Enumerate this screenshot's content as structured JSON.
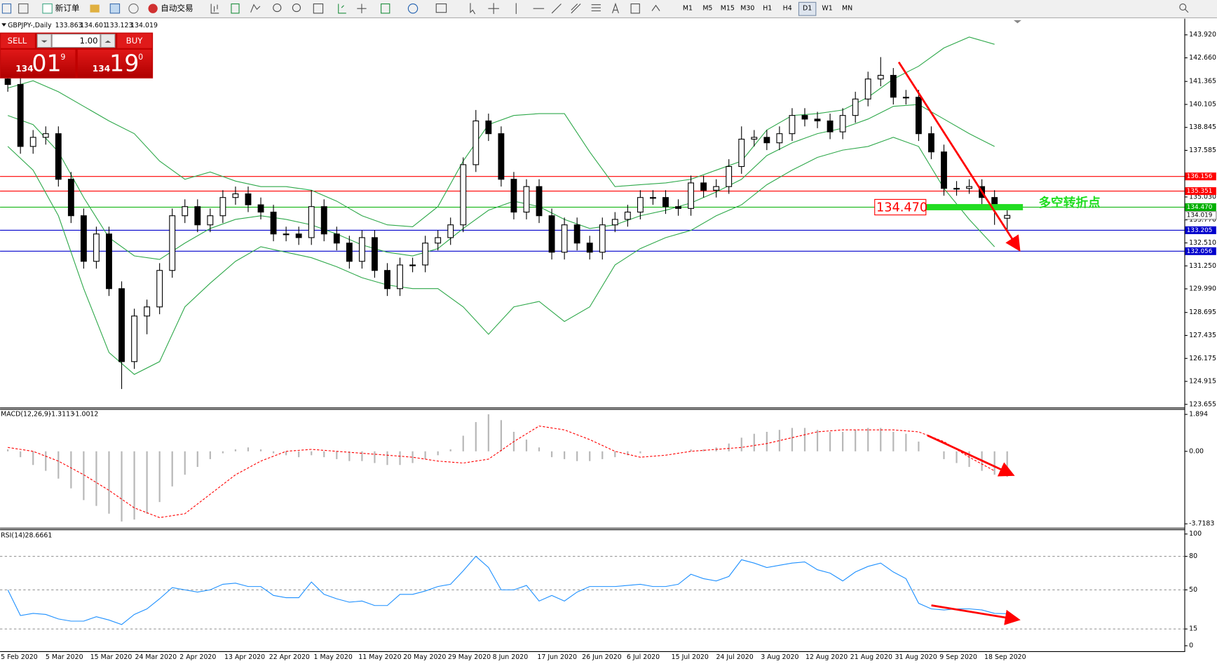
{
  "toolbar": {
    "buttons": [
      "新订单",
      "自动交易"
    ],
    "timeframes": [
      "M1",
      "M5",
      "M15",
      "M30",
      "H1",
      "H4",
      "D1",
      "W1",
      "MN"
    ],
    "active_timeframe": 6
  },
  "trade_panel": {
    "sell": "SELL",
    "buy": "BUY",
    "lots": "1.00",
    "bid": {
      "big": "134",
      "main": "01",
      "pip": "9"
    },
    "ask": {
      "big": "134",
      "main": "19",
      "pip": "0"
    }
  },
  "chart_data": [
    {
      "type": "candlestick",
      "symbol": "GBPJPY-,Daily",
      "ylim": [
        123.485,
        144.81
      ],
      "yticks": [
        {
          "value": 143.92,
          "label": "143.920"
        },
        {
          "value": 142.66,
          "label": "142.660"
        },
        141.365,
        {
          "value": 140.105,
          "label": "140.105"
        },
        138.845,
        137.585,
        {
          "value": 135.03,
          "label": "135.030"
        },
        {
          "value": 133.77,
          "label": "133.770"
        },
        {
          "value": 132.51,
          "label": "132.510"
        },
        {
          "value": 131.25,
          "label": "131.250"
        },
        {
          "value": 129.99,
          "label": "129.990"
        },
        128.695,
        127.435,
        126.175,
        124.915,
        123.655
      ],
      "xticklabels": [
        "5 Feb 2020",
        "5 Mar 2020",
        "15 Mar 2020",
        "24 Mar 2020",
        "2 Apr 2020",
        "13 Apr 2020",
        "22 Apr 2020",
        "1 May 2020",
        "11 May 2020",
        "20 May 2020",
        "29 May 2020",
        "8 Jun 2020",
        "17 Jun 2020",
        "26 Jun 2020",
        "6 Jul 2020",
        "15 Jul 2020",
        "24 Jul 2020",
        "3 Aug 2020",
        "12 Aug 2020",
        "21 Aug 2020",
        "31 Aug 2020",
        "9 Sep 2020",
        "18 Sep 2020"
      ],
      "candles": [
        [
          141.5,
          141.9,
          140.8,
          141.2
        ],
        [
          141.2,
          141.6,
          137.4,
          137.8
        ],
        [
          137.8,
          138.7,
          137.4,
          138.3
        ],
        [
          138.3,
          138.9,
          137.9,
          138.5
        ],
        [
          138.5,
          138.9,
          135.6,
          136.0
        ],
        [
          136.0,
          136.4,
          133.6,
          134.0
        ],
        [
          134.0,
          134.4,
          131.1,
          131.5
        ],
        [
          131.5,
          133.4,
          131.1,
          133.0
        ],
        [
          133.0,
          133.4,
          129.6,
          130.0
        ],
        [
          130.0,
          130.4,
          124.5,
          126.0
        ],
        [
          126.0,
          128.9,
          125.6,
          128.5
        ],
        [
          128.5,
          129.4,
          127.5,
          129.0
        ],
        [
          129.0,
          131.4,
          128.6,
          131.0
        ],
        [
          131.0,
          134.4,
          130.6,
          134.0
        ],
        [
          134.0,
          134.9,
          133.6,
          134.5
        ],
        [
          134.5,
          134.9,
          133.1,
          133.5
        ],
        [
          133.5,
          134.4,
          133.1,
          134.0
        ],
        [
          134.0,
          135.4,
          133.6,
          135.0
        ],
        [
          135.0,
          135.6,
          134.6,
          135.2
        ],
        [
          135.2,
          135.6,
          134.2,
          134.6
        ],
        [
          134.6,
          135.0,
          133.8,
          134.2
        ],
        [
          134.2,
          134.6,
          132.6,
          133.0
        ],
        [
          133.0,
          133.4,
          132.6,
          133.0
        ],
        [
          133.0,
          133.4,
          132.4,
          132.8
        ],
        [
          132.8,
          135.4,
          132.4,
          134.5
        ],
        [
          134.5,
          134.9,
          132.6,
          133.0
        ],
        [
          133.0,
          133.4,
          132.1,
          132.5
        ],
        [
          132.5,
          132.9,
          131.1,
          131.5
        ],
        [
          131.5,
          133.2,
          131.1,
          132.8
        ],
        [
          132.8,
          133.2,
          130.6,
          131.0
        ],
        [
          131.0,
          131.4,
          129.6,
          130.0
        ],
        [
          130.0,
          131.7,
          129.6,
          131.3
        ],
        [
          131.3,
          131.7,
          130.9,
          131.3
        ],
        [
          131.3,
          132.9,
          130.9,
          132.5
        ],
        [
          132.5,
          133.2,
          132.1,
          132.8
        ],
        [
          132.8,
          133.9,
          132.4,
          133.5
        ],
        [
          133.5,
          137.2,
          133.1,
          136.8
        ],
        [
          136.8,
          139.8,
          136.4,
          139.2
        ],
        [
          139.2,
          139.6,
          138.1,
          138.5
        ],
        [
          138.5,
          138.9,
          135.6,
          136.0
        ],
        [
          136.0,
          136.4,
          133.8,
          134.2
        ],
        [
          134.2,
          136.0,
          133.8,
          135.6
        ],
        [
          135.6,
          136.0,
          133.6,
          134.0
        ],
        [
          134.0,
          134.4,
          131.6,
          132.0
        ],
        [
          132.0,
          133.9,
          131.6,
          133.5
        ],
        [
          133.5,
          133.9,
          132.1,
          132.5
        ],
        [
          132.5,
          132.9,
          131.6,
          132.0
        ],
        [
          132.0,
          133.9,
          131.6,
          133.5
        ],
        [
          133.5,
          134.2,
          133.1,
          133.8
        ],
        [
          133.8,
          134.6,
          133.4,
          134.2
        ],
        [
          134.2,
          135.4,
          133.8,
          135.0
        ],
        [
          135.0,
          135.4,
          134.6,
          135.0
        ],
        [
          135.0,
          135.4,
          134.1,
          134.5
        ],
        [
          134.5,
          134.9,
          134.0,
          134.4
        ],
        [
          134.4,
          136.2,
          134.0,
          135.8
        ],
        [
          135.8,
          136.2,
          135.0,
          135.4
        ],
        [
          135.4,
          136.0,
          135.0,
          135.6
        ],
        [
          135.6,
          137.1,
          135.2,
          136.7
        ],
        [
          136.7,
          138.9,
          136.3,
          138.2
        ],
        [
          138.2,
          138.7,
          137.8,
          138.3
        ],
        [
          138.3,
          138.7,
          137.6,
          138.0
        ],
        [
          138.0,
          138.9,
          137.6,
          138.5
        ],
        [
          138.5,
          139.9,
          138.1,
          139.5
        ],
        [
          139.5,
          139.9,
          138.9,
          139.3
        ],
        [
          139.3,
          139.7,
          138.8,
          139.2
        ],
        [
          139.2,
          139.6,
          138.2,
          138.6
        ],
        [
          138.6,
          139.9,
          138.2,
          139.5
        ],
        [
          139.5,
          140.8,
          139.1,
          140.4
        ],
        [
          140.4,
          141.9,
          140.0,
          141.5
        ],
        [
          141.5,
          142.7,
          141.1,
          141.7
        ],
        [
          141.7,
          142.1,
          140.1,
          140.5
        ],
        [
          140.5,
          140.9,
          140.1,
          140.5
        ],
        [
          140.5,
          140.9,
          138.1,
          138.5
        ],
        [
          138.5,
          138.9,
          137.1,
          137.5
        ],
        [
          137.5,
          137.9,
          135.1,
          135.5
        ],
        [
          135.5,
          135.9,
          135.1,
          135.5
        ],
        [
          135.5,
          136.0,
          135.2,
          135.6
        ],
        [
          135.6,
          136.0,
          134.6,
          135.0
        ],
        [
          135.0,
          135.4,
          133.5,
          134.5
        ],
        [
          133.863,
          134.601,
          133.123,
          134.019
        ]
      ],
      "bands": {
        "color": "#2ea84a",
        "upper": [
          141.0,
          141.4,
          140.8,
          140.0,
          139.2,
          138.5,
          137.0,
          136.0,
          136.4,
          135.9,
          135.6,
          135.6,
          135.4,
          134.8,
          134.0,
          133.5,
          133.4,
          134.5,
          137.0,
          139.0,
          139.5,
          139.6,
          139.6,
          137.5,
          135.6,
          135.7,
          135.8,
          136.0,
          136.5,
          137.0,
          138.7,
          139.5,
          139.6,
          139.8,
          140.5,
          141.5,
          142.2,
          143.2,
          143.8,
          143.4
        ],
        "middle": [
          139.5,
          139.0,
          137.5,
          135.0,
          132.8,
          131.8,
          131.6,
          132.5,
          133.3,
          133.8,
          134.0,
          133.8,
          133.5,
          133.0,
          132.4,
          132.0,
          131.8,
          132.2,
          133.3,
          134.3,
          134.8,
          134.5,
          133.8,
          133.3,
          133.5,
          134.0,
          134.3,
          134.7,
          135.3,
          136.0,
          137.3,
          138.0,
          138.5,
          138.8,
          139.3,
          140.0,
          140.1,
          139.3,
          138.5,
          137.8
        ],
        "lower": [
          137.8,
          136.5,
          134.0,
          130.0,
          126.5,
          125.3,
          126.0,
          129.0,
          130.3,
          131.5,
          132.3,
          132.0,
          131.7,
          131.2,
          130.6,
          130.2,
          130.0,
          130.0,
          129.0,
          127.5,
          129.0,
          129.3,
          128.2,
          129.0,
          131.3,
          132.2,
          132.8,
          133.2,
          134.0,
          134.6,
          135.7,
          136.5,
          137.2,
          137.6,
          137.8,
          138.3,
          137.8,
          135.5,
          133.8,
          132.3
        ]
      },
      "levels": [
        {
          "value": 136.156,
          "color": "#ff0000"
        },
        {
          "value": 135.351,
          "color": "#ff0000"
        },
        {
          "value": 134.47,
          "label": "134.470",
          "color": "#00b000"
        },
        {
          "value": 133.205,
          "color": "#0000cc"
        },
        {
          "value": 132.056,
          "color": "#0000cc"
        }
      ],
      "annotation": {
        "text": "多空转折点",
        "color": "#22dd22"
      }
    },
    {
      "type": "macd",
      "title": "MACD(12,26,9)",
      "ylim": [
        -3.92,
        2.13
      ],
      "yticks": [
        1.894,
        {
          "value": 0,
          "label": "0.00"
        },
        -3.7183
      ],
      "histogram": [
        0.1,
        -0.3,
        -0.7,
        -1.0,
        -1.4,
        -1.9,
        -2.5,
        -2.8,
        -3.2,
        -3.6,
        -3.5,
        -3.2,
        -2.6,
        -1.8,
        -1.2,
        -0.8,
        -0.4,
        -0.1,
        0.1,
        0.2,
        0.1,
        -0.1,
        -0.2,
        -0.3,
        -0.2,
        -0.3,
        -0.4,
        -0.5,
        -0.5,
        -0.6,
        -0.7,
        -0.7,
        -0.6,
        -0.4,
        -0.2,
        0.1,
        0.8,
        1.5,
        1.9,
        1.6,
        1.0,
        0.6,
        0.2,
        -0.3,
        -0.4,
        -0.5,
        -0.5,
        -0.4,
        -0.3,
        -0.2,
        -0.1,
        0.0,
        0.0,
        0.0,
        0.1,
        0.1,
        0.2,
        0.4,
        0.7,
        0.9,
        1.0,
        1.1,
        1.2,
        1.2,
        1.1,
        1.0,
        1.0,
        1.1,
        1.2,
        1.2,
        1.0,
        0.9,
        0.5,
        0.0,
        -0.4,
        -0.6,
        -0.8,
        -1.0,
        -1.2,
        -1.3113
      ],
      "histogram_color": "#b8b8b8",
      "signal": [
        0.2,
        0.0,
        -0.5,
        -1.2,
        -2.0,
        -2.9,
        -3.4,
        -3.2,
        -2.2,
        -1.2,
        -0.5,
        0.0,
        0.1,
        0.0,
        -0.1,
        -0.2,
        -0.3,
        -0.5,
        -0.6,
        -0.4,
        0.5,
        1.3,
        1.1,
        0.6,
        0.0,
        -0.3,
        -0.2,
        0.0,
        0.1,
        0.2,
        0.4,
        0.7,
        1.0,
        1.1,
        1.1,
        1.1,
        1.0,
        0.5,
        -0.3,
        -1.0012
      ],
      "signal_color": "#ff0000"
    },
    {
      "type": "line",
      "title": "RSI(14)",
      "ylim": [
        -4.86,
        103.5
      ],
      "yticks": [
        100,
        80,
        50,
        15,
        0
      ],
      "levels": [
        80,
        50,
        15
      ],
      "color": "#1e90ff",
      "values": [
        50,
        27,
        29,
        28,
        24,
        22,
        22,
        26,
        23,
        19,
        28,
        33,
        42,
        52,
        50,
        48,
        50,
        55,
        56,
        53,
        53,
        45,
        43,
        43,
        57,
        46,
        42,
        39,
        40,
        36,
        36,
        46,
        46,
        49,
        53,
        55,
        67,
        80,
        70,
        50,
        50,
        54,
        40,
        45,
        40,
        48,
        53,
        53,
        53,
        54,
        55,
        53,
        53,
        55,
        64,
        60,
        58,
        62,
        77,
        74,
        70,
        72,
        74,
        75,
        68,
        65,
        58,
        66,
        71,
        74,
        66,
        60,
        38,
        33,
        32,
        33,
        33,
        32,
        29,
        28.6661
      ]
    }
  ]
}
